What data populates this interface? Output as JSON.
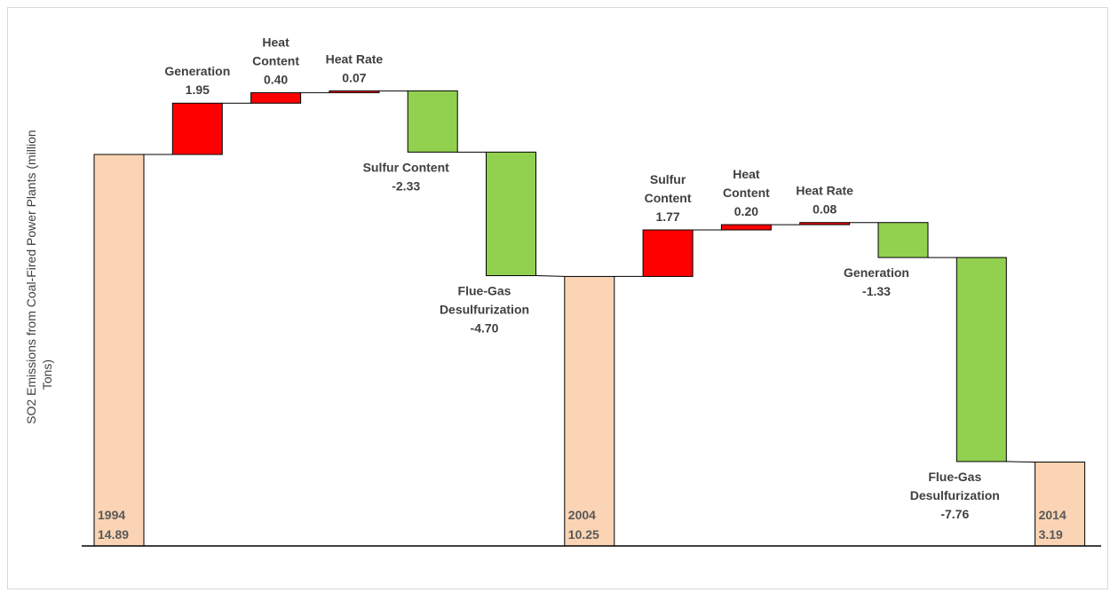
{
  "chart_data": {
    "type": "bar",
    "subtype": "waterfall",
    "ylabel_lines": [
      "SO2 Emissions from Coal-Fired  Power Plants (million",
      "Tons)"
    ],
    "ylim": [
      0,
      16.5
    ],
    "colors": {
      "total": "#fad4b4",
      "increase": "#ff0000",
      "decrease": "#92d050",
      "connector": "#000000"
    },
    "steps": [
      {
        "kind": "total",
        "label": [
          "1994"
        ],
        "value_text": "14.89",
        "value": 14.89
      },
      {
        "kind": "delta",
        "label": [
          "Generation"
        ],
        "value_text": "1.95",
        "value": 1.95
      },
      {
        "kind": "delta",
        "label": [
          "Heat",
          "Content"
        ],
        "value_text": "0.40",
        "value": 0.4
      },
      {
        "kind": "delta",
        "label": [
          "Heat Rate"
        ],
        "value_text": "0.07",
        "value": 0.07
      },
      {
        "kind": "delta",
        "label": [
          "Sulfur Content"
        ],
        "value_text": "-2.33",
        "value": -2.33
      },
      {
        "kind": "delta",
        "label": [
          "Flue-Gas",
          "Desulfurization"
        ],
        "value_text": "-4.70",
        "value": -4.7
      },
      {
        "kind": "total",
        "label": [
          "2004"
        ],
        "value_text": "10.25",
        "value": 10.25
      },
      {
        "kind": "delta",
        "label": [
          "Sulfur",
          "Content"
        ],
        "value_text": "1.77",
        "value": 1.77
      },
      {
        "kind": "delta",
        "label": [
          "Heat",
          "Content"
        ],
        "value_text": "0.20",
        "value": 0.2
      },
      {
        "kind": "delta",
        "label": [
          "Heat Rate"
        ],
        "value_text": "0.08",
        "value": 0.08
      },
      {
        "kind": "delta",
        "label": [
          "Generation"
        ],
        "value_text": "-1.33",
        "value": -1.33
      },
      {
        "kind": "delta",
        "label": [
          "Flue-Gas",
          "Desulfurization"
        ],
        "value_text": "-7.76",
        "value": -7.76
      },
      {
        "kind": "total",
        "label": [
          "2014"
        ],
        "value_text": "3.19",
        "value": 3.19
      }
    ]
  }
}
